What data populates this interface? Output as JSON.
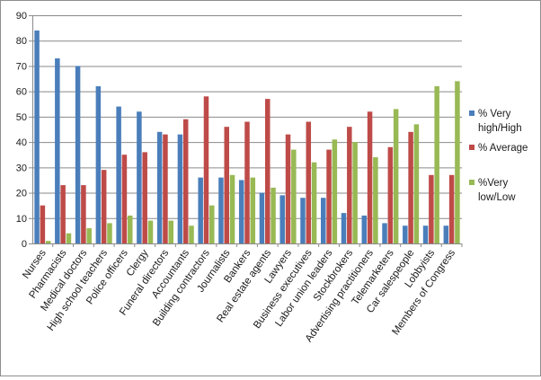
{
  "chart_data": {
    "type": "bar",
    "title": "",
    "xlabel": "",
    "ylabel": "",
    "ylim": [
      0,
      90
    ],
    "yticks": [
      0,
      10,
      20,
      30,
      40,
      50,
      60,
      70,
      80,
      90
    ],
    "grid": true,
    "legend_position": "right",
    "categories": [
      "Nurses",
      "Pharmacists",
      "Medical doctors",
      "High school teachers",
      "Police officers",
      "Clergy",
      "Funeral directors",
      "Accountants",
      "Building contractors",
      "Journalists",
      "Bankers",
      "Real estate agents",
      "Lawyers",
      "Business executives",
      "Labor union leaders",
      "Stockbrokers",
      "Advertising practitioners",
      "Telemarketers",
      "Car salespeople",
      "Lobbyists",
      "Members of Congress"
    ],
    "series": [
      {
        "name": "% Very high/High",
        "color": "#4a7ebb",
        "values": [
          84,
          73,
          70,
          62,
          54,
          52,
          44,
          43,
          26,
          26,
          25,
          20,
          19,
          18,
          18,
          12,
          11,
          8,
          7,
          7,
          7
        ]
      },
      {
        "name": "% Average",
        "color": "#be4b48",
        "values": [
          15,
          23,
          23,
          29,
          35,
          36,
          43,
          49,
          58,
          46,
          48,
          57,
          43,
          48,
          37,
          46,
          52,
          38,
          44,
          27,
          27
        ]
      },
      {
        "name": "%Very low/Low",
        "color": "#98b954",
        "values": [
          1,
          4,
          6,
          8,
          11,
          9,
          9,
          7,
          15,
          27,
          26,
          22,
          37,
          32,
          41,
          40,
          34,
          53,
          47,
          62,
          64
        ]
      }
    ]
  }
}
